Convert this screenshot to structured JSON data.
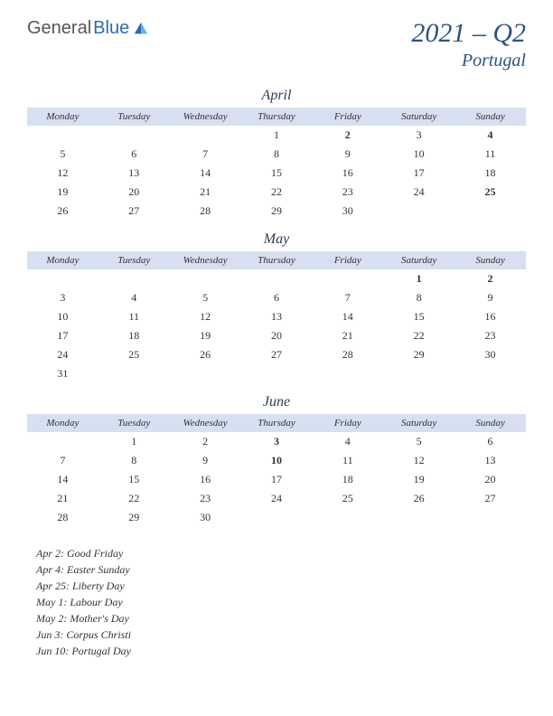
{
  "logo": {
    "part1": "General",
    "part2": "Blue"
  },
  "title": "2021 – Q2",
  "country": "Portugal",
  "colors": {
    "header_bg": "#d6e0f0",
    "title_color": "#2c5282",
    "holiday_color": "#c53030",
    "text_color": "#333333",
    "background": "#ffffff"
  },
  "day_headers": [
    "Monday",
    "Tuesday",
    "Wednesday",
    "Thursday",
    "Friday",
    "Saturday",
    "Sunday"
  ],
  "months": [
    {
      "name": "April",
      "weeks": [
        [
          null,
          null,
          null,
          {
            "d": 1
          },
          {
            "d": 2,
            "h": true
          },
          {
            "d": 3
          },
          {
            "d": 4,
            "h": true
          }
        ],
        [
          {
            "d": 5
          },
          {
            "d": 6
          },
          {
            "d": 7
          },
          {
            "d": 8
          },
          {
            "d": 9
          },
          {
            "d": 10
          },
          {
            "d": 11
          }
        ],
        [
          {
            "d": 12
          },
          {
            "d": 13
          },
          {
            "d": 14
          },
          {
            "d": 15
          },
          {
            "d": 16
          },
          {
            "d": 17
          },
          {
            "d": 18
          }
        ],
        [
          {
            "d": 19
          },
          {
            "d": 20
          },
          {
            "d": 21
          },
          {
            "d": 22
          },
          {
            "d": 23
          },
          {
            "d": 24
          },
          {
            "d": 25,
            "h": true
          }
        ],
        [
          {
            "d": 26
          },
          {
            "d": 27
          },
          {
            "d": 28
          },
          {
            "d": 29
          },
          {
            "d": 30
          },
          null,
          null
        ]
      ]
    },
    {
      "name": "May",
      "weeks": [
        [
          null,
          null,
          null,
          null,
          null,
          {
            "d": 1,
            "h": true
          },
          {
            "d": 2,
            "h": true
          }
        ],
        [
          {
            "d": 3
          },
          {
            "d": 4
          },
          {
            "d": 5
          },
          {
            "d": 6
          },
          {
            "d": 7
          },
          {
            "d": 8
          },
          {
            "d": 9
          }
        ],
        [
          {
            "d": 10
          },
          {
            "d": 11
          },
          {
            "d": 12
          },
          {
            "d": 13
          },
          {
            "d": 14
          },
          {
            "d": 15
          },
          {
            "d": 16
          }
        ],
        [
          {
            "d": 17
          },
          {
            "d": 18
          },
          {
            "d": 19
          },
          {
            "d": 20
          },
          {
            "d": 21
          },
          {
            "d": 22
          },
          {
            "d": 23
          }
        ],
        [
          {
            "d": 24
          },
          {
            "d": 25
          },
          {
            "d": 26
          },
          {
            "d": 27
          },
          {
            "d": 28
          },
          {
            "d": 29
          },
          {
            "d": 30
          }
        ],
        [
          {
            "d": 31
          },
          null,
          null,
          null,
          null,
          null,
          null
        ]
      ]
    },
    {
      "name": "June",
      "weeks": [
        [
          null,
          {
            "d": 1
          },
          {
            "d": 2
          },
          {
            "d": 3,
            "h": true
          },
          {
            "d": 4
          },
          {
            "d": 5
          },
          {
            "d": 6
          }
        ],
        [
          {
            "d": 7
          },
          {
            "d": 8
          },
          {
            "d": 9
          },
          {
            "d": 10,
            "h": true
          },
          {
            "d": 11
          },
          {
            "d": 12
          },
          {
            "d": 13
          }
        ],
        [
          {
            "d": 14
          },
          {
            "d": 15
          },
          {
            "d": 16
          },
          {
            "d": 17
          },
          {
            "d": 18
          },
          {
            "d": 19
          },
          {
            "d": 20
          }
        ],
        [
          {
            "d": 21
          },
          {
            "d": 22
          },
          {
            "d": 23
          },
          {
            "d": 24
          },
          {
            "d": 25
          },
          {
            "d": 26
          },
          {
            "d": 27
          }
        ],
        [
          {
            "d": 28
          },
          {
            "d": 29
          },
          {
            "d": 30
          },
          null,
          null,
          null,
          null
        ]
      ]
    }
  ],
  "holidays": [
    "Apr 2: Good Friday",
    "Apr 4: Easter Sunday",
    "Apr 25: Liberty Day",
    "May 1: Labour Day",
    "May 2: Mother's Day",
    "Jun 3: Corpus Christi",
    "Jun 10: Portugal Day"
  ]
}
